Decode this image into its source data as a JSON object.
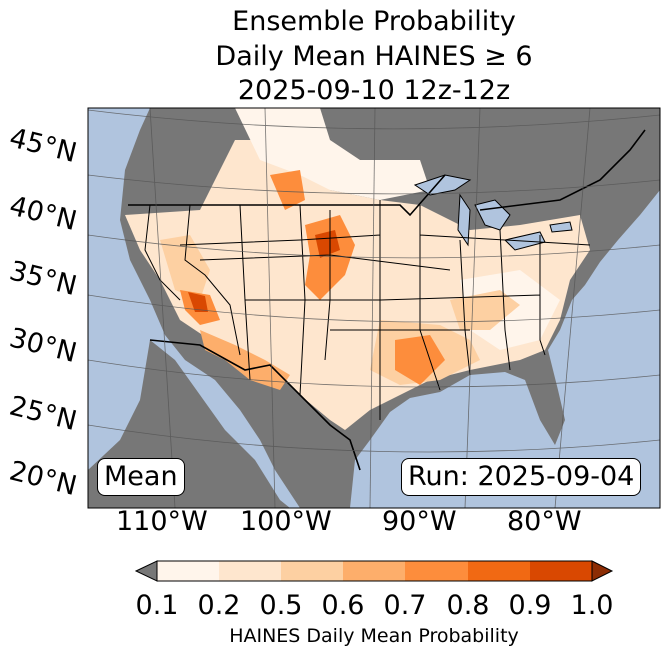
{
  "title": {
    "line1": "Ensemble Probability",
    "line2": "Daily Mean HAINES ≥ 6",
    "line3": "2025-09-10 12z-12z"
  },
  "map": {
    "lat_labels": [
      "45°N",
      "40°N",
      "35°N",
      "30°N",
      "25°N",
      "20°N"
    ],
    "lon_labels": [
      "110°W",
      "100°W",
      "90°W",
      "80°W"
    ],
    "stat_label": "Mean",
    "run_label": "Run: 2025-09-04",
    "colors": {
      "ocean": "#b0c4de",
      "land_masked": "#777777",
      "lake": "#b0c4de"
    }
  },
  "colorbar": {
    "ticks": [
      "0.1",
      "0.2",
      "0.5",
      "0.6",
      "0.7",
      "0.8",
      "0.9",
      "1.0"
    ],
    "colors": [
      "#fff5eb",
      "#fee6ce",
      "#fdd0a2",
      "#fdae6b",
      "#fd8d3c",
      "#f16913",
      "#d94801"
    ],
    "under_color": "#777777",
    "over_color": "#8c2d04",
    "label": "HAINES Daily Mean Probability"
  }
}
